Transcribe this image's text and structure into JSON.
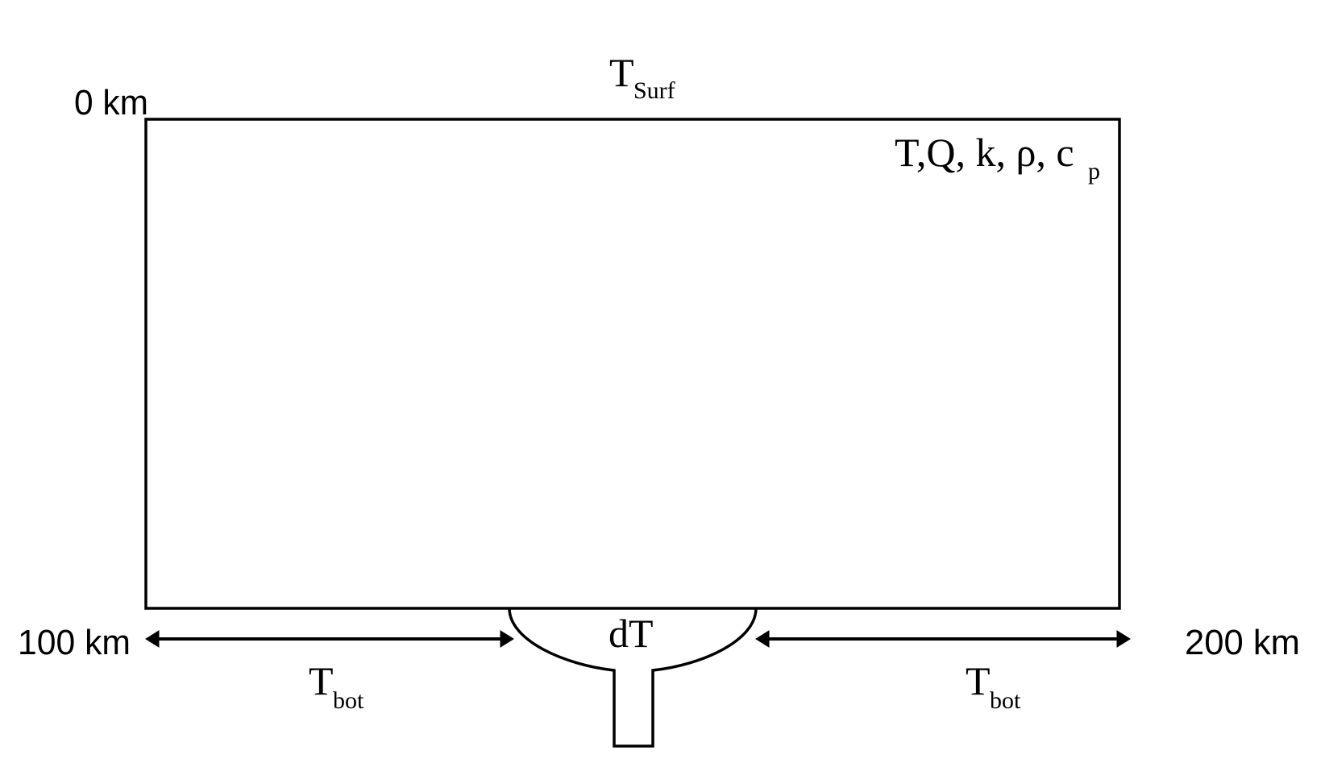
{
  "labels": {
    "top_depth": "0 km",
    "bottom_left_depth": "100 km",
    "bottom_right_depth": "200 km",
    "surface_temp_main": "T",
    "surface_temp_sub": "Surf",
    "properties_main": "T,Q, k, ρ, c",
    "properties_sub": "p",
    "plume_label": "dT",
    "bottom_temp_left_main": "T",
    "bottom_temp_left_sub": "bot",
    "bottom_temp_right_main": "T",
    "bottom_temp_right_sub": "bot"
  }
}
